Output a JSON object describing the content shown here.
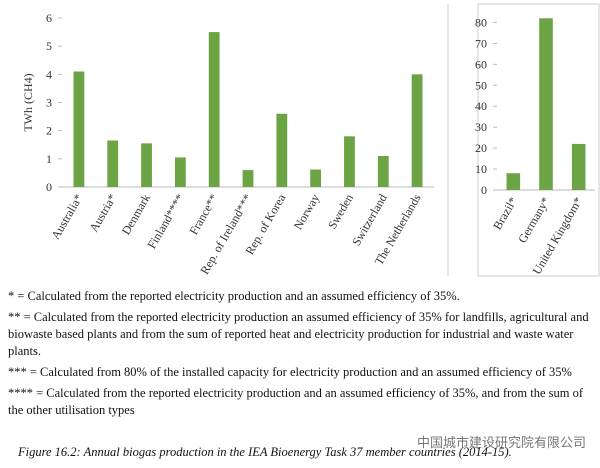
{
  "chart_data": [
    {
      "type": "bar",
      "y_label": "TWh (CH4)",
      "categories": [
        "Australia*",
        "Austria*",
        "Denmark",
        "Finland****",
        "France**",
        "Rep. of Ireland***",
        "Rep. of Korea",
        "Norway",
        "Sweden",
        "Switzerland",
        "The Netherlands"
      ],
      "values": [
        4.1,
        1.65,
        1.55,
        1.05,
        5.5,
        0.6,
        2.6,
        0.62,
        1.8,
        1.1,
        4.0
      ],
      "color": "#6ca445",
      "ylim": [
        0,
        6
      ],
      "yticks": [
        0,
        1,
        2,
        3,
        4,
        5,
        6
      ]
    },
    {
      "type": "bar",
      "categories": [
        "Brazil*",
        "Germany*",
        "United Kingdom*"
      ],
      "values": [
        8,
        82,
        22
      ],
      "color": "#6ca445",
      "ylim": [
        0,
        85
      ],
      "yticks": [
        0,
        10,
        20,
        30,
        40,
        50,
        60,
        70,
        80
      ]
    }
  ],
  "notes": [
    "* = Calculated from the reported electricity production and an assumed efficiency of 35%.",
    "** = Calculated from the reported electricity production an assumed efficiency of 35% for landfills, agricultural and biowaste based plants and from the sum of reported heat and electricity production for industrial and waste water plants.",
    "*** = Calculated from 80% of the installed capacity for electricity production and an assumed efficiency of 35%",
    "**** = Calculated from the reported electricity production and an assumed efficiency of 35%, and from the sum of the other utilisation types"
  ],
  "watermark": "中国城市建设研究院有限公司",
  "caption": "Figure 16.2: Annual biogas production in the IEA Bioenergy Task 37 member countries (2014-15)."
}
